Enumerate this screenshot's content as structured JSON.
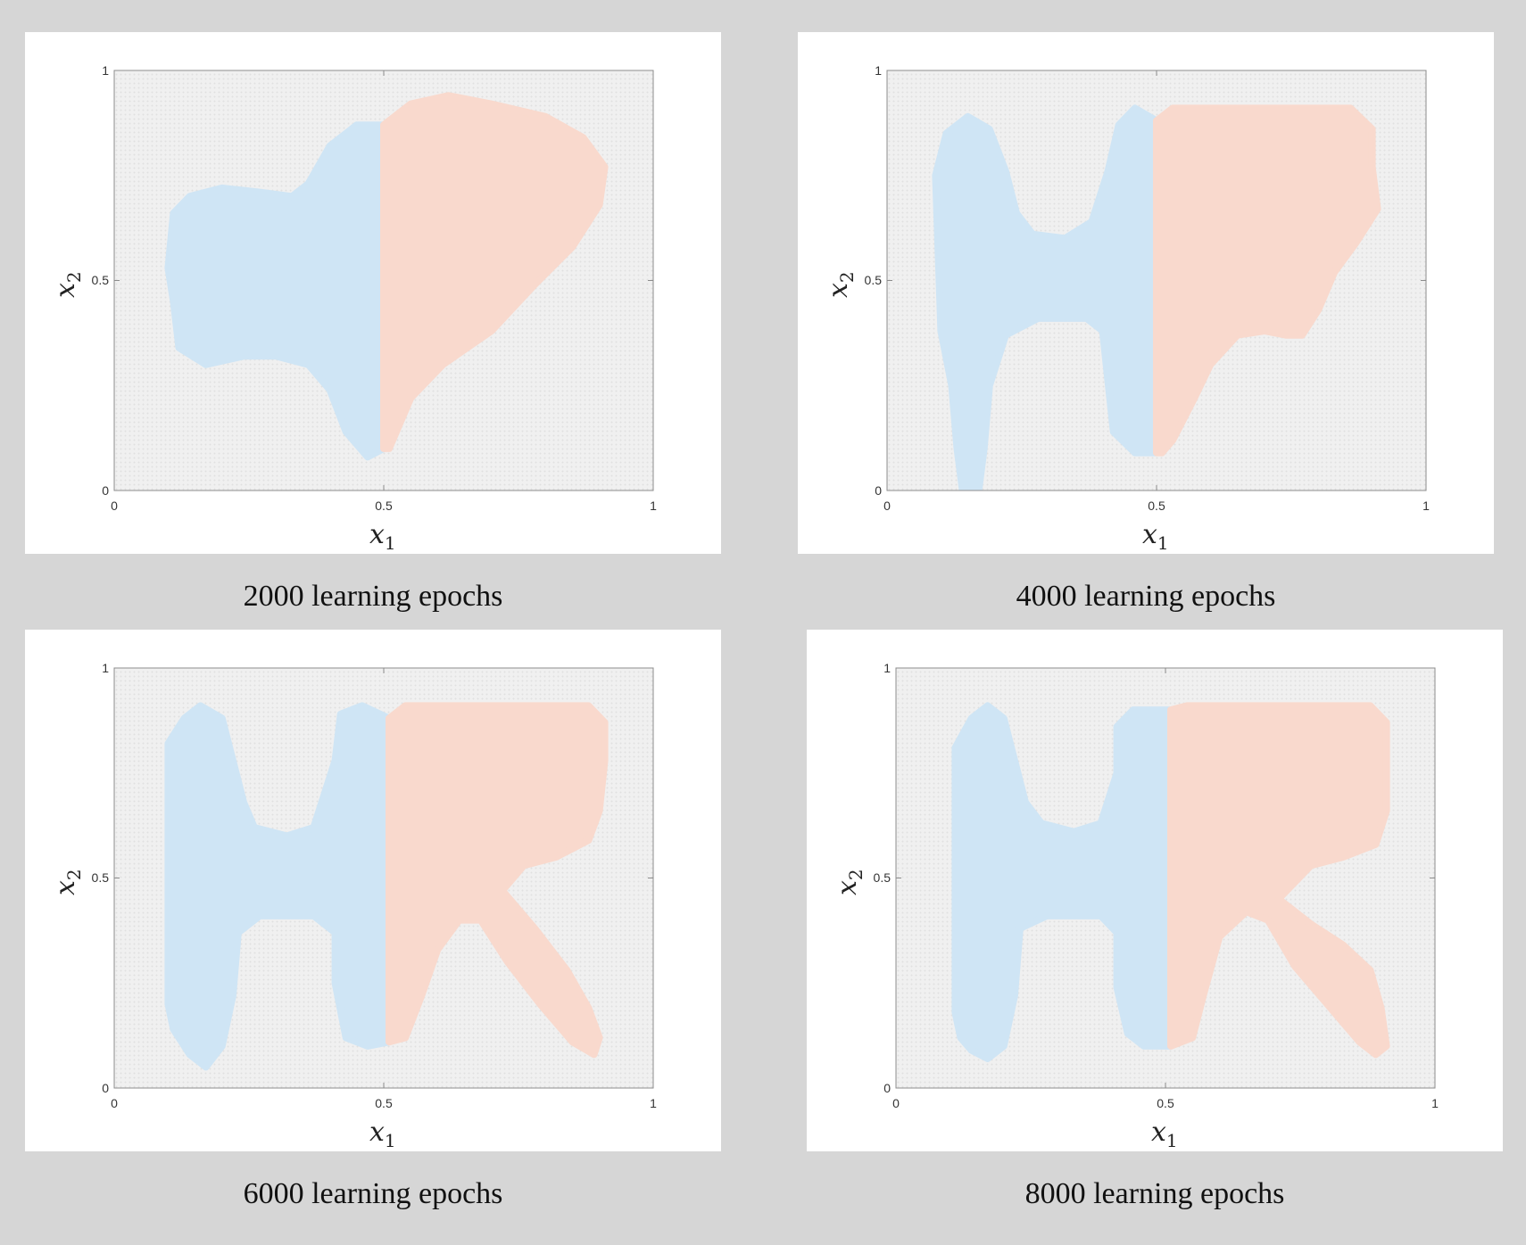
{
  "palette": {
    "background": "#d6d6d6",
    "panel": "#ffffff",
    "plot_area": "#f0f0f0",
    "grid_dots": "#e0e0e0",
    "class_blue": "#cfe5f5",
    "class_red": "#f9d9cd",
    "axis": "#8c8c8c"
  },
  "chart_data": [
    {
      "type": "heatmap",
      "caption": "2000 learning epochs",
      "xlabel": "x",
      "xlabel_sub": "1",
      "ylabel": "x",
      "ylabel_sub": "2",
      "xlim": [
        0,
        1
      ],
      "ylim": [
        0,
        1
      ],
      "xticks": [
        "0",
        "0.5",
        "1"
      ],
      "yticks": [
        "0",
        "0.5",
        "1"
      ],
      "grid": false,
      "series": [
        {
          "color": "#cfe5f5",
          "regions": [
            [
              [
                0.1,
                0.53
              ],
              [
                0.11,
                0.66
              ],
              [
                0.14,
                0.7
              ],
              [
                0.2,
                0.72
              ],
              [
                0.27,
                0.71
              ],
              [
                0.33,
                0.7
              ],
              [
                0.36,
                0.73
              ],
              [
                0.4,
                0.82
              ],
              [
                0.45,
                0.87
              ],
              [
                0.5,
                0.87
              ],
              [
                0.5,
                0.1
              ],
              [
                0.47,
                0.08
              ],
              [
                0.43,
                0.14
              ],
              [
                0.4,
                0.24
              ],
              [
                0.36,
                0.3
              ],
              [
                0.3,
                0.32
              ],
              [
                0.24,
                0.32
              ],
              [
                0.17,
                0.3
              ],
              [
                0.12,
                0.34
              ],
              [
                0.11,
                0.45
              ]
            ]
          ]
        },
        {
          "color": "#f9d9cd",
          "regions": [
            [
              [
                0.5,
                0.87
              ],
              [
                0.55,
                0.92
              ],
              [
                0.62,
                0.94
              ],
              [
                0.7,
                0.92
              ],
              [
                0.8,
                0.89
              ],
              [
                0.87,
                0.84
              ],
              [
                0.91,
                0.77
              ],
              [
                0.9,
                0.68
              ],
              [
                0.85,
                0.58
              ],
              [
                0.78,
                0.49
              ],
              [
                0.7,
                0.38
              ],
              [
                0.61,
                0.3
              ],
              [
                0.55,
                0.22
              ],
              [
                0.51,
                0.1
              ],
              [
                0.5,
                0.1
              ]
            ]
          ]
        }
      ]
    },
    {
      "type": "heatmap",
      "caption": "4000 learning epochs",
      "xlabel": "x",
      "xlabel_sub": "1",
      "ylabel": "x",
      "ylabel_sub": "2",
      "xlim": [
        0,
        1
      ],
      "ylim": [
        0,
        1
      ],
      "xticks": [
        "0",
        "0.5",
        "1"
      ],
      "yticks": [
        "0",
        "0.5",
        "1"
      ],
      "grid": false,
      "series": [
        {
          "color": "#cfe5f5",
          "regions": [
            [
              [
                0.1,
                0.38
              ],
              [
                0.09,
                0.75
              ],
              [
                0.11,
                0.85
              ],
              [
                0.15,
                0.89
              ],
              [
                0.19,
                0.86
              ],
              [
                0.22,
                0.76
              ],
              [
                0.24,
                0.66
              ],
              [
                0.27,
                0.61
              ],
              [
                0.33,
                0.6
              ],
              [
                0.38,
                0.64
              ],
              [
                0.41,
                0.76
              ],
              [
                0.43,
                0.87
              ],
              [
                0.46,
                0.91
              ],
              [
                0.5,
                0.88
              ],
              [
                0.5,
                0.09
              ],
              [
                0.46,
                0.09
              ],
              [
                0.42,
                0.14
              ],
              [
                0.41,
                0.26
              ],
              [
                0.4,
                0.38
              ],
              [
                0.37,
                0.41
              ],
              [
                0.28,
                0.41
              ],
              [
                0.22,
                0.37
              ],
              [
                0.19,
                0.25
              ],
              [
                0.18,
                0.1
              ],
              [
                0.17,
                0.0
              ],
              [
                0.14,
                0.0
              ],
              [
                0.13,
                0.1
              ],
              [
                0.12,
                0.25
              ]
            ]
          ]
        },
        {
          "color": "#f9d9cd",
          "regions": [
            [
              [
                0.5,
                0.88
              ],
              [
                0.53,
                0.91
              ],
              [
                0.86,
                0.91
              ],
              [
                0.9,
                0.86
              ],
              [
                0.9,
                0.77
              ],
              [
                0.91,
                0.67
              ],
              [
                0.87,
                0.59
              ],
              [
                0.83,
                0.52
              ],
              [
                0.8,
                0.43
              ],
              [
                0.77,
                0.37
              ],
              [
                0.74,
                0.37
              ],
              [
                0.7,
                0.38
              ],
              [
                0.65,
                0.37
              ],
              [
                0.6,
                0.3
              ],
              [
                0.57,
                0.22
              ],
              [
                0.53,
                0.12
              ],
              [
                0.51,
                0.09
              ],
              [
                0.5,
                0.09
              ]
            ]
          ]
        }
      ]
    },
    {
      "type": "heatmap",
      "caption": "6000 learning epochs",
      "xlabel": "x",
      "xlabel_sub": "1",
      "ylabel": "x",
      "ylabel_sub": "2",
      "xlim": [
        0,
        1
      ],
      "ylim": [
        0,
        1
      ],
      "xticks": [
        "0",
        "0.5",
        "1"
      ],
      "yticks": [
        "0",
        "0.5",
        "1"
      ],
      "grid": false,
      "series": [
        {
          "color": "#cfe5f5",
          "regions": [
            [
              [
                0.1,
                0.2
              ],
              [
                0.1,
                0.82
              ],
              [
                0.13,
                0.88
              ],
              [
                0.16,
                0.91
              ],
              [
                0.2,
                0.88
              ],
              [
                0.22,
                0.78
              ],
              [
                0.24,
                0.68
              ],
              [
                0.26,
                0.62
              ],
              [
                0.32,
                0.6
              ],
              [
                0.37,
                0.62
              ],
              [
                0.41,
                0.78
              ],
              [
                0.42,
                0.89
              ],
              [
                0.46,
                0.91
              ],
              [
                0.51,
                0.88
              ],
              [
                0.51,
                0.11
              ],
              [
                0.47,
                0.1
              ],
              [
                0.43,
                0.12
              ],
              [
                0.41,
                0.25
              ],
              [
                0.41,
                0.37
              ],
              [
                0.37,
                0.41
              ],
              [
                0.27,
                0.41
              ],
              [
                0.23,
                0.37
              ],
              [
                0.22,
                0.22
              ],
              [
                0.2,
                0.1
              ],
              [
                0.17,
                0.05
              ],
              [
                0.14,
                0.08
              ],
              [
                0.11,
                0.14
              ]
            ]
          ]
        },
        {
          "color": "#f9d9cd",
          "regions": [
            [
              [
                0.51,
                0.88
              ],
              [
                0.54,
                0.91
              ],
              [
                0.88,
                0.91
              ],
              [
                0.91,
                0.87
              ],
              [
                0.91,
                0.78
              ],
              [
                0.9,
                0.66
              ],
              [
                0.88,
                0.59
              ],
              [
                0.82,
                0.55
              ],
              [
                0.76,
                0.53
              ],
              [
                0.72,
                0.47
              ],
              [
                0.78,
                0.38
              ],
              [
                0.84,
                0.28
              ],
              [
                0.88,
                0.19
              ],
              [
                0.9,
                0.12
              ],
              [
                0.89,
                0.08
              ],
              [
                0.85,
                0.11
              ],
              [
                0.79,
                0.2
              ],
              [
                0.73,
                0.3
              ],
              [
                0.68,
                0.4
              ],
              [
                0.64,
                0.4
              ],
              [
                0.6,
                0.33
              ],
              [
                0.57,
                0.22
              ],
              [
                0.54,
                0.12
              ],
              [
                0.51,
                0.11
              ]
            ]
          ]
        }
      ]
    },
    {
      "type": "heatmap",
      "caption": "8000 learning epochs",
      "xlabel": "x",
      "xlabel_sub": "1",
      "ylabel": "x",
      "ylabel_sub": "2",
      "xlim": [
        0,
        1
      ],
      "ylim": [
        0,
        1
      ],
      "xticks": [
        "0",
        "0.5",
        "1"
      ],
      "yticks": [
        "0",
        "0.5",
        "1"
      ],
      "grid": false,
      "series": [
        {
          "color": "#cfe5f5",
          "regions": [
            [
              [
                0.11,
                0.18
              ],
              [
                0.11,
                0.81
              ],
              [
                0.14,
                0.88
              ],
              [
                0.17,
                0.91
              ],
              [
                0.2,
                0.88
              ],
              [
                0.22,
                0.78
              ],
              [
                0.24,
                0.68
              ],
              [
                0.27,
                0.63
              ],
              [
                0.33,
                0.61
              ],
              [
                0.38,
                0.63
              ],
              [
                0.41,
                0.75
              ],
              [
                0.41,
                0.86
              ],
              [
                0.44,
                0.9
              ],
              [
                0.51,
                0.9
              ],
              [
                0.51,
                0.1
              ],
              [
                0.46,
                0.1
              ],
              [
                0.43,
                0.13
              ],
              [
                0.41,
                0.24
              ],
              [
                0.41,
                0.37
              ],
              [
                0.38,
                0.41
              ],
              [
                0.28,
                0.41
              ],
              [
                0.23,
                0.38
              ],
              [
                0.22,
                0.22
              ],
              [
                0.2,
                0.1
              ],
              [
                0.17,
                0.07
              ],
              [
                0.14,
                0.09
              ],
              [
                0.12,
                0.12
              ]
            ]
          ]
        },
        {
          "color": "#f9d9cd",
          "regions": [
            [
              [
                0.51,
                0.9
              ],
              [
                0.54,
                0.91
              ],
              [
                0.88,
                0.91
              ],
              [
                0.91,
                0.87
              ],
              [
                0.91,
                0.78
              ],
              [
                0.91,
                0.66
              ],
              [
                0.89,
                0.58
              ],
              [
                0.83,
                0.55
              ],
              [
                0.77,
                0.53
              ],
              [
                0.71,
                0.45
              ],
              [
                0.77,
                0.39
              ],
              [
                0.83,
                0.34
              ],
              [
                0.88,
                0.28
              ],
              [
                0.9,
                0.19
              ],
              [
                0.91,
                0.1
              ],
              [
                0.89,
                0.08
              ],
              [
                0.86,
                0.11
              ],
              [
                0.8,
                0.2
              ],
              [
                0.74,
                0.29
              ],
              [
                0.69,
                0.4
              ],
              [
                0.65,
                0.42
              ],
              [
                0.6,
                0.36
              ],
              [
                0.57,
                0.22
              ],
              [
                0.55,
                0.12
              ],
              [
                0.51,
                0.1
              ]
            ]
          ]
        }
      ]
    }
  ]
}
